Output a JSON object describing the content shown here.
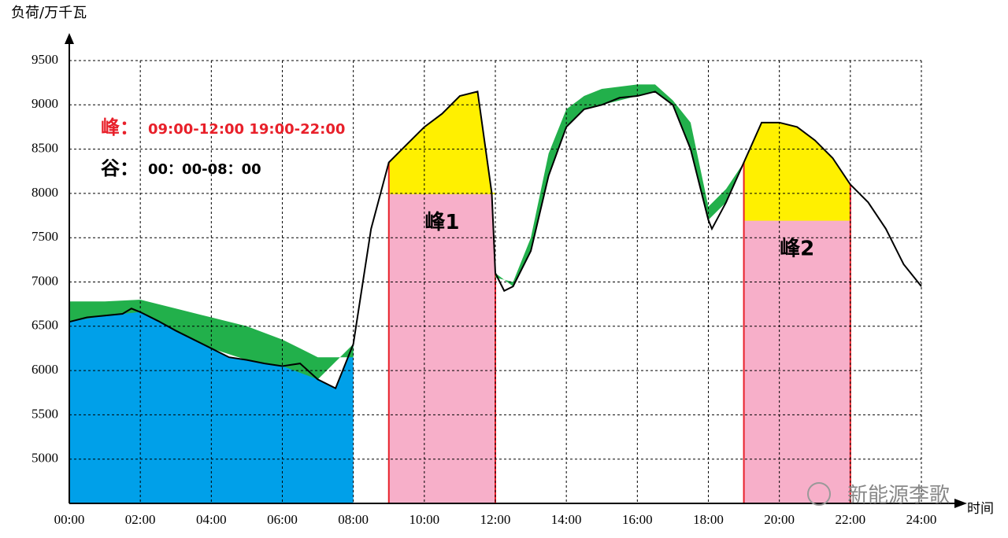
{
  "chart_data": {
    "type": "line",
    "y_label": "负荷/万千瓦",
    "x_label": "时间",
    "peak_label": "峰：",
    "peak_hours": "09:00-12:00 19:00-22:00",
    "valley_label": "谷：",
    "valley_hours": "00：00-08：00",
    "watermark": "新能源李歌",
    "xlim": [
      0,
      24
    ],
    "ylim": [
      4500,
      9500
    ],
    "xticks": [
      {
        "value": 0,
        "label": "00:00"
      },
      {
        "value": 2,
        "label": "02:00"
      },
      {
        "value": 4,
        "label": "04:00"
      },
      {
        "value": 6,
        "label": "06:00"
      },
      {
        "value": 8,
        "label": "08:00"
      },
      {
        "value": 10,
        "label": "10:00"
      },
      {
        "value": 12,
        "label": "12:00"
      },
      {
        "value": 14,
        "label": "14:00"
      },
      {
        "value": 16,
        "label": "16:00"
      },
      {
        "value": 18,
        "label": "18:00"
      },
      {
        "value": 20,
        "label": "20:00"
      },
      {
        "value": 22,
        "label": "22:00"
      },
      {
        "value": 24,
        "label": "24:00"
      }
    ],
    "yticks": [
      5000,
      5500,
      6000,
      6500,
      7000,
      7500,
      8000,
      8500,
      9000,
      9500
    ],
    "grid": true,
    "series": [
      {
        "color": "#000000",
        "x": [
          0,
          0.5,
          1,
          1.5,
          1.75,
          2,
          2.5,
          3,
          3.5,
          4,
          4.5,
          5,
          5.5,
          6,
          6.5,
          7,
          7.5,
          8,
          8.5,
          9,
          9.5,
          10,
          10.5,
          11,
          11.5,
          11.9,
          12,
          12.25,
          12.5,
          13,
          13.5,
          14,
          14.5,
          15,
          15.5,
          16,
          16.5,
          17,
          17.5,
          18,
          18.1,
          18.5,
          19,
          19.5,
          20,
          20.5,
          21,
          21.5,
          22,
          22.5,
          23,
          23.5,
          24
        ],
        "values": [
          6550,
          6600,
          6620,
          6640,
          6700,
          6660,
          6560,
          6450,
          6350,
          6250,
          6150,
          6120,
          6080,
          6050,
          6080,
          5900,
          5800,
          6300,
          7600,
          8350,
          8550,
          8750,
          8900,
          9100,
          9150,
          8000,
          7100,
          6900,
          6950,
          7350,
          8200,
          8750,
          8950,
          9000,
          9080,
          9100,
          9150,
          9000,
          8500,
          7700,
          7600,
          7900,
          8350,
          8800,
          8800,
          8750,
          8600,
          8400,
          8100,
          7900,
          7600,
          7200,
          6950
        ]
      },
      {
        "color": "#22b04b",
        "x": [
          0,
          1,
          2,
          3,
          4,
          5,
          6,
          7,
          8,
          10,
          12,
          12.5,
          13,
          13.5,
          14,
          14.5,
          15,
          16,
          16.5,
          17,
          17.5,
          18,
          18.5,
          19
        ],
        "values": [
          6780,
          6780,
          6800,
          6700,
          6600,
          6500,
          6350,
          6150,
          6150,
          null,
          7050,
          7000,
          7500,
          8450,
          8950,
          9100,
          9180,
          9230,
          9230,
          9050,
          8800,
          7850,
          8050,
          8350
        ]
      }
    ],
    "valley": {
      "from": 0,
      "to": 8,
      "color": "#00a0e9"
    },
    "peaks": [
      {
        "from": 9,
        "to": 12,
        "threshold": 8000,
        "label": "峰1"
      },
      {
        "from": 19,
        "to": 22,
        "threshold": 7700,
        "label": "峰2"
      }
    ],
    "peak_color": "#f7afc9",
    "excess_color": "#fff000",
    "edge_color": "#e8202a"
  }
}
